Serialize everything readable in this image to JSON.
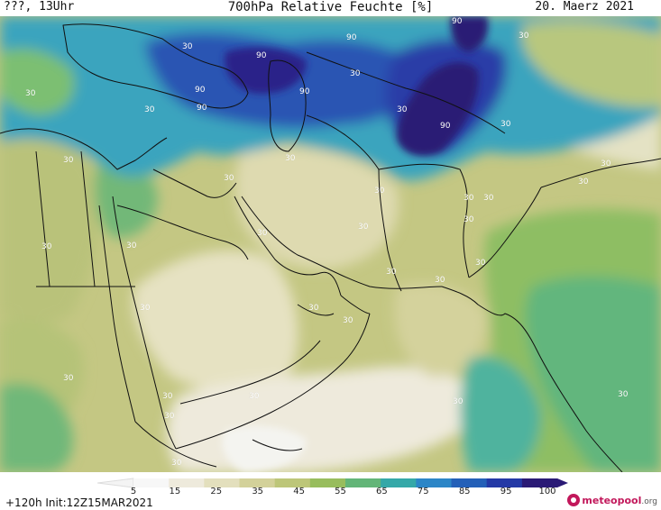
{
  "header": {
    "left": "???, 13Uhr",
    "title": "700hPa Relative Feuchte [%]",
    "date": "20. Maerz 2021"
  },
  "map": {
    "contour_label": "30",
    "high_label": "90",
    "colors": {
      "dry": "#eeeadc",
      "tan": "#d8d3a2",
      "olive": "#c1c67f",
      "green": "#a0c061",
      "teal": "#52b79c",
      "blue": "#2c86c7",
      "deep": "#2439a6",
      "purple": "#2a1a75",
      "border": "#101010"
    }
  },
  "colorbar": {
    "ticks": [
      "5",
      "15",
      "25",
      "35",
      "45",
      "55",
      "65",
      "75",
      "85",
      "95",
      "100"
    ],
    "colors": [
      "#f7f7f7",
      "#eeeadc",
      "#e3dfbd",
      "#d3d19a",
      "#bdc679",
      "#98bd5d",
      "#63b578",
      "#35a8a8",
      "#2c86c7",
      "#2460b8",
      "#2439a6",
      "#2a1a75"
    ]
  },
  "footer": {
    "run": "+120h  Init:12Z15MAR2021",
    "brand": "meteopool",
    "brand_suffix": ".org"
  }
}
